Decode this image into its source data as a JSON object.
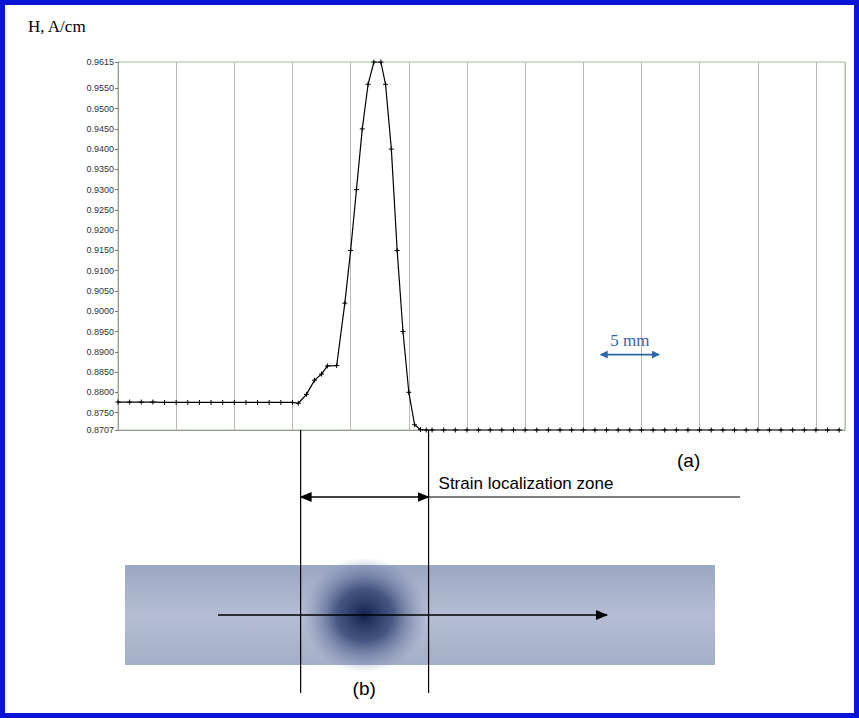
{
  "chart_data": {
    "type": "line",
    "title": "H, A/cm",
    "x": [
      0,
      1,
      2,
      3,
      4,
      5,
      6,
      7,
      8,
      9,
      10,
      11,
      12,
      13,
      14,
      15,
      15.5,
      16.2,
      16.9,
      17.5,
      18.0,
      18.8,
      19.5,
      20.0,
      20.5,
      21.0,
      21.5,
      22.0,
      22.6,
      23.0,
      23.5,
      24.0,
      24.5,
      25.0,
      25.5,
      26.0,
      26.5,
      27,
      28,
      29,
      30,
      31,
      32,
      33,
      34,
      35,
      36,
      37,
      38,
      39,
      40,
      41,
      42,
      43,
      44,
      45,
      46,
      47,
      48,
      49,
      50,
      51,
      52,
      53,
      54,
      55,
      56,
      57,
      58,
      59,
      60,
      61,
      62
    ],
    "values": [
      0.8776,
      0.8776,
      0.8776,
      0.8776,
      0.8775,
      0.8775,
      0.8775,
      0.8775,
      0.8775,
      0.8775,
      0.8775,
      0.8775,
      0.8775,
      0.8775,
      0.8775,
      0.8775,
      0.8773,
      0.8795,
      0.883,
      0.8845,
      0.8865,
      0.8866,
      0.902,
      0.915,
      0.93,
      0.945,
      0.956,
      0.9615,
      0.9615,
      0.956,
      0.94,
      0.915,
      0.895,
      0.88,
      0.872,
      0.8708,
      0.8707,
      0.8707,
      0.8707,
      0.8707,
      0.8707,
      0.8707,
      0.8707,
      0.8707,
      0.8707,
      0.8707,
      0.8707,
      0.8707,
      0.8707,
      0.8707,
      0.8707,
      0.8707,
      0.8707,
      0.8707,
      0.8707,
      0.8707,
      0.8707,
      0.8707,
      0.8707,
      0.8707,
      0.8707,
      0.8707,
      0.8707,
      0.8707,
      0.8707,
      0.8707,
      0.8707,
      0.8707,
      0.8707,
      0.8707,
      0.8707,
      0.8707,
      0.8707
    ],
    "color": "#000000",
    "marker": "plus",
    "xlim": [
      0,
      62.5
    ],
    "xticks": [
      0,
      5,
      10,
      15,
      20,
      25,
      30,
      35,
      40,
      45,
      50,
      55,
      60
    ],
    "tick_labels": "y",
    "ylim": [
      0.8707,
      0.9615
    ],
    "yticks": [
      {
        "value": 0.8707,
        "label": "0.8707"
      },
      {
        "value": 0.875,
        "label": "0.8750"
      },
      {
        "value": 0.88,
        "label": "0.8800"
      },
      {
        "value": 0.885,
        "label": "0.8850"
      },
      {
        "value": 0.89,
        "label": "0.8900"
      },
      {
        "value": 0.895,
        "label": "0.8950"
      },
      {
        "value": 0.9,
        "label": "0.9000"
      },
      {
        "value": 0.905,
        "label": "0.9050"
      },
      {
        "value": 0.91,
        "label": "0.9100"
      },
      {
        "value": 0.915,
        "label": "0.9150"
      },
      {
        "value": 0.92,
        "label": "0.9200"
      },
      {
        "value": 0.925,
        "label": "0.9250"
      },
      {
        "value": 0.93,
        "label": "0.9300"
      },
      {
        "value": 0.935,
        "label": "0.9350"
      },
      {
        "value": 0.94,
        "label": "0.9400"
      },
      {
        "value": 0.945,
        "label": "0.9450"
      },
      {
        "value": 0.95,
        "label": "0.9500"
      },
      {
        "value": 0.955,
        "label": "0.9550"
      },
      {
        "value": 0.9615,
        "label": "0.9615"
      }
    ],
    "grid": true,
    "scale_bar": {
      "label": "5 mm",
      "from": 41.5,
      "to": 46.5,
      "y": 0.8893
    },
    "panel_a": "(a)",
    "strain_localization_zone": {
      "label": "Strain localization zone",
      "from": 15.7,
      "to": 26.7
    },
    "panel_b": "(b)"
  }
}
